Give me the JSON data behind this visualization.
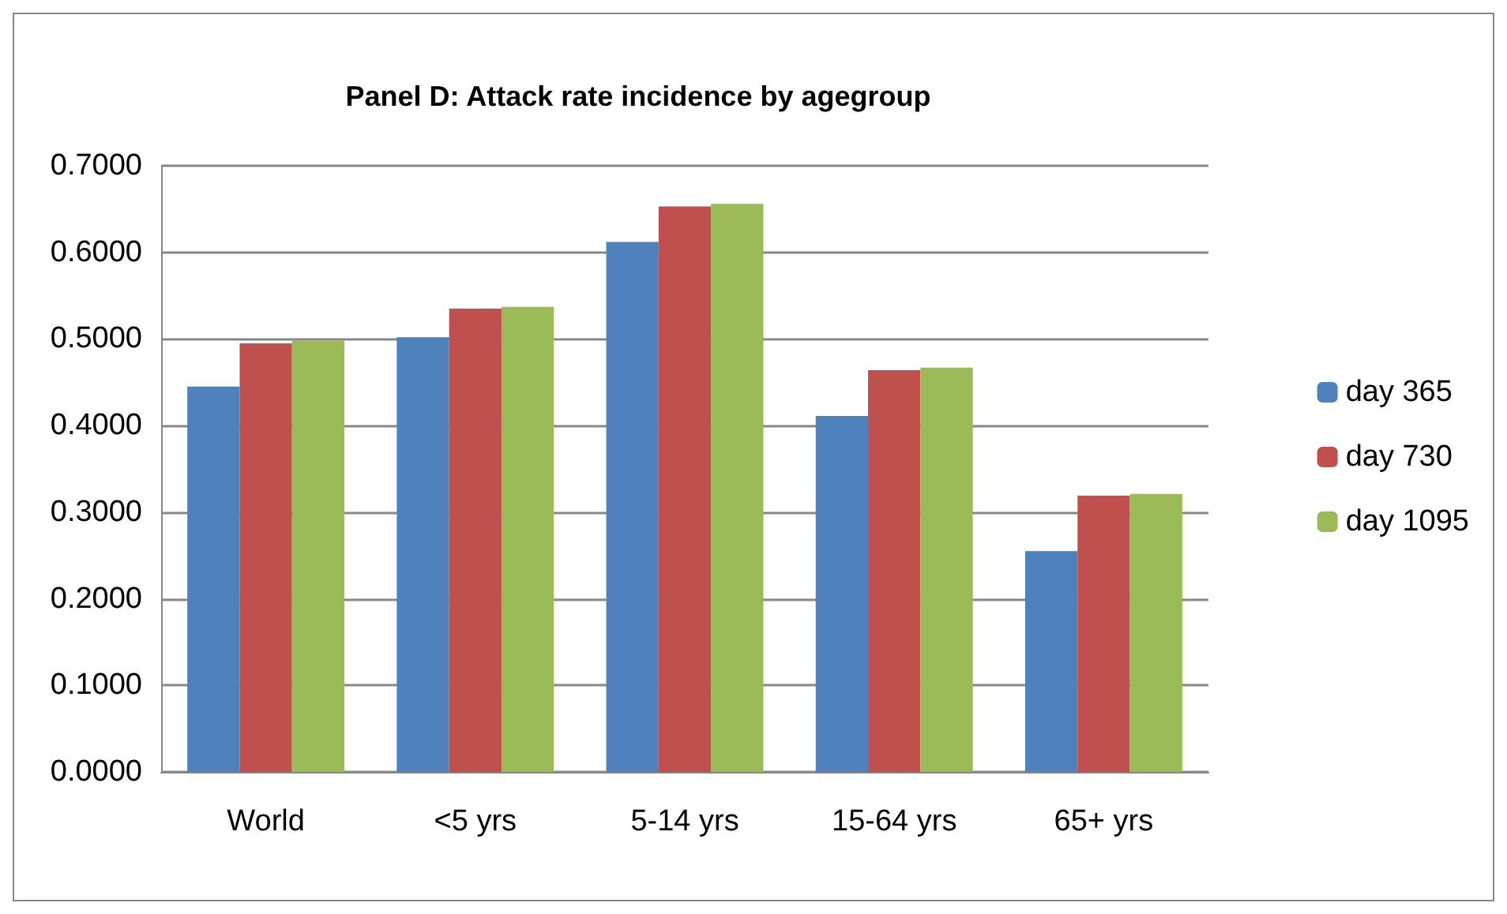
{
  "chart_data": {
    "type": "bar",
    "title": "Panel D: Attack rate incidence by agegroup",
    "categories": [
      "World",
      "<5 yrs",
      "5-14 yrs",
      "15-64 yrs",
      "65+ yrs"
    ],
    "series": [
      {
        "name": "day 365",
        "color": "#4f81bd",
        "values": [
          0.445,
          0.502,
          0.612,
          0.411,
          0.255
        ]
      },
      {
        "name": "day 730",
        "color": "#c0504d",
        "values": [
          0.495,
          0.535,
          0.653,
          0.464,
          0.319
        ]
      },
      {
        "name": "day 1095",
        "color": "#9bbb59",
        "values": [
          0.498,
          0.537,
          0.656,
          0.467,
          0.321
        ]
      }
    ],
    "ylim": [
      0,
      0.7
    ],
    "yticks": [
      {
        "value": 0,
        "label": "0.0000"
      },
      {
        "value": 0.1,
        "label": "0.1000"
      },
      {
        "value": 0.2,
        "label": "0.2000"
      },
      {
        "value": 0.3,
        "label": "0.3000"
      },
      {
        "value": 0.4,
        "label": "0.4000"
      },
      {
        "value": 0.5,
        "label": "0.5000"
      },
      {
        "value": 0.6,
        "label": "0.6000"
      },
      {
        "value": 0.7,
        "label": "0.7000"
      }
    ],
    "grid": "y",
    "legend": "right"
  }
}
